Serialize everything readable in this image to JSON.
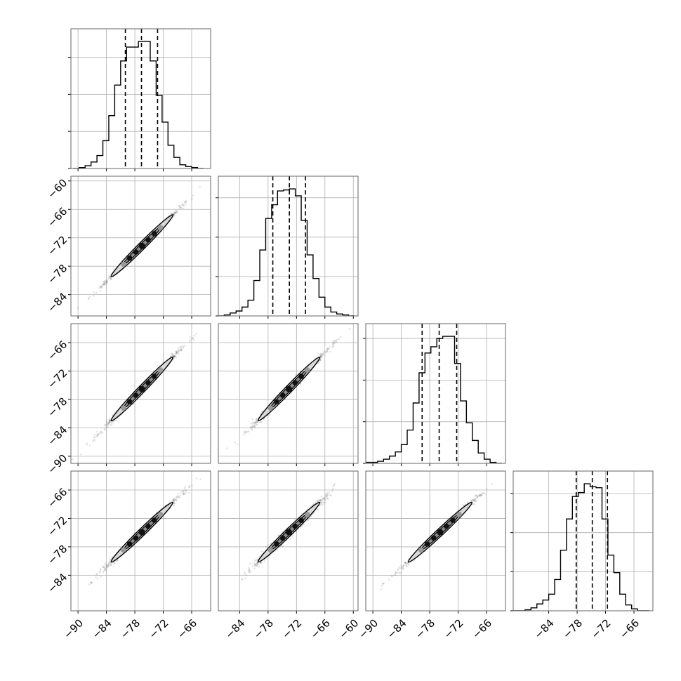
{
  "chart_data": {
    "type": "corner",
    "title": "",
    "parameters": [
      "",
      "",
      "",
      ""
    ],
    "grid": true,
    "ranges": [
      [
        -91.5,
        -62.0
      ],
      [
        -88.5,
        -59.0
      ],
      [
        -91.5,
        -62.0
      ],
      [
        -91.5,
        -62.0
      ]
    ],
    "x_ticks": [
      [
        -90,
        -84,
        -78,
        -72,
        -66
      ],
      [
        -84,
        -78,
        -72,
        -66,
        -60
      ],
      [
        -90,
        -84,
        -78,
        -72,
        -66
      ],
      [
        -84,
        -78,
        -72,
        -66
      ]
    ],
    "x_tick_labels": [
      [
        "−90",
        "−84",
        "−78",
        "−72",
        "−66"
      ],
      [
        "−84",
        "−78",
        "−72",
        "−66",
        "−60"
      ],
      [
        "−90",
        "−84",
        "−78",
        "−72",
        "−66"
      ],
      [
        "−84",
        "−78",
        "−72",
        "−66"
      ]
    ],
    "y_ticks": {
      "1": [
        -60,
        -66,
        -72,
        -78,
        -84
      ],
      "2": [
        -66,
        -72,
        -78,
        -84,
        -90
      ],
      "3": [
        -66,
        -72,
        -78,
        -84
      ]
    },
    "y_tick_labels": {
      "1": [
        "−60",
        "−66",
        "−72",
        "−78",
        "−84"
      ],
      "2": [
        "−66",
        "−72",
        "−78",
        "−84",
        "−90"
      ],
      "3": [
        "−66",
        "−72",
        "−78",
        "−84"
      ]
    },
    "histograms": [
      {
        "bin_edges": [
          -91.0,
          -89.75,
          -88.5,
          -87.25,
          -86.0,
          -84.75,
          -83.5,
          -82.25,
          -81.0,
          -79.75,
          -78.5,
          -77.25,
          -76.0,
          -74.75,
          -73.5,
          -72.25,
          -71.0,
          -69.75,
          -68.5,
          -67.25,
          -66.0,
          -64.75,
          -63.5
        ],
        "counts": [
          0,
          1,
          3,
          7,
          14,
          30,
          57,
          90,
          116,
          131,
          131,
          137,
          137,
          116,
          79,
          50,
          25,
          12,
          4,
          2,
          1,
          0
        ],
        "quantiles": [
          -80.0,
          -76.6,
          -73.2
        ]
      },
      {
        "bin_edges": [
          -88.5,
          -87.25,
          -86.0,
          -84.75,
          -83.5,
          -82.25,
          -81.0,
          -79.75,
          -78.5,
          -77.25,
          -76.0,
          -74.75,
          -73.5,
          -72.25,
          -71.0,
          -69.75,
          -68.5,
          -67.25,
          -66.0,
          -64.75,
          -63.5,
          -62.25,
          -61.0,
          -59.75
        ],
        "counts": [
          0,
          1,
          3,
          5,
          9,
          16,
          36,
          67,
          99,
          113,
          127,
          128,
          129,
          122,
          97,
          62,
          38,
          19,
          9,
          4,
          2,
          1,
          0
        ],
        "quantiles": [
          -77.0,
          -73.5,
          -70.1
        ]
      },
      {
        "bin_edges": [
          -91.5,
          -90.25,
          -89.0,
          -87.75,
          -86.5,
          -85.25,
          -84.0,
          -82.75,
          -81.5,
          -80.25,
          -79.0,
          -77.75,
          -76.5,
          -75.25,
          -74.0,
          -72.75,
          -71.5,
          -70.25,
          -69.0,
          -67.75,
          -66.5,
          -65.25,
          -64.0,
          -62.75
        ],
        "counts": [
          1,
          1,
          2,
          4,
          7,
          11,
          18,
          32,
          58,
          87,
          106,
          112,
          120,
          122,
          122,
          96,
          60,
          39,
          22,
          10,
          4,
          1,
          0
        ],
        "quantiles": [
          -79.6,
          -76.0,
          -72.3
        ]
      },
      {
        "bin_edges": [
          -91.5,
          -90.25,
          -89.0,
          -87.75,
          -86.5,
          -85.25,
          -84.0,
          -82.75,
          -81.5,
          -80.25,
          -79.0,
          -77.75,
          -76.5,
          -75.25,
          -74.0,
          -72.75,
          -71.5,
          -70.25,
          -69.0,
          -67.75,
          -66.5,
          -65.25,
          -64.0,
          -62.75
        ],
        "counts": [
          0,
          0,
          1,
          3,
          7,
          11,
          17,
          32,
          62,
          94,
          117,
          121,
          130,
          127,
          126,
          94,
          57,
          39,
          17,
          6,
          2,
          0,
          0
        ],
        "quantiles": [
          -78.2,
          -74.8,
          -71.6
        ]
      }
    ],
    "pairs": [
      {
        "row": 1,
        "col": 0,
        "cx": -76.5,
        "cy": -73.7,
        "sx": 3.1,
        "sy": 3.1,
        "rho": 0.997
      },
      {
        "row": 2,
        "col": 0,
        "cx": -76.5,
        "cy": -75.8,
        "sx": 3.1,
        "sy": 3.2,
        "rho": 0.995
      },
      {
        "row": 2,
        "col": 1,
        "cx": -73.6,
        "cy": -75.8,
        "sx": 3.1,
        "sy": 3.2,
        "rho": 0.994
      },
      {
        "row": 3,
        "col": 0,
        "cx": -76.5,
        "cy": -74.9,
        "sx": 3.1,
        "sy": 3.0,
        "rho": 0.994
      },
      {
        "row": 3,
        "col": 1,
        "cx": -73.6,
        "cy": -74.9,
        "sx": 3.1,
        "sy": 3.0,
        "rho": 0.99
      },
      {
        "row": 3,
        "col": 2,
        "cx": -75.8,
        "cy": -74.9,
        "sx": 3.2,
        "sy": 3.0,
        "rho": 0.995
      }
    ]
  }
}
